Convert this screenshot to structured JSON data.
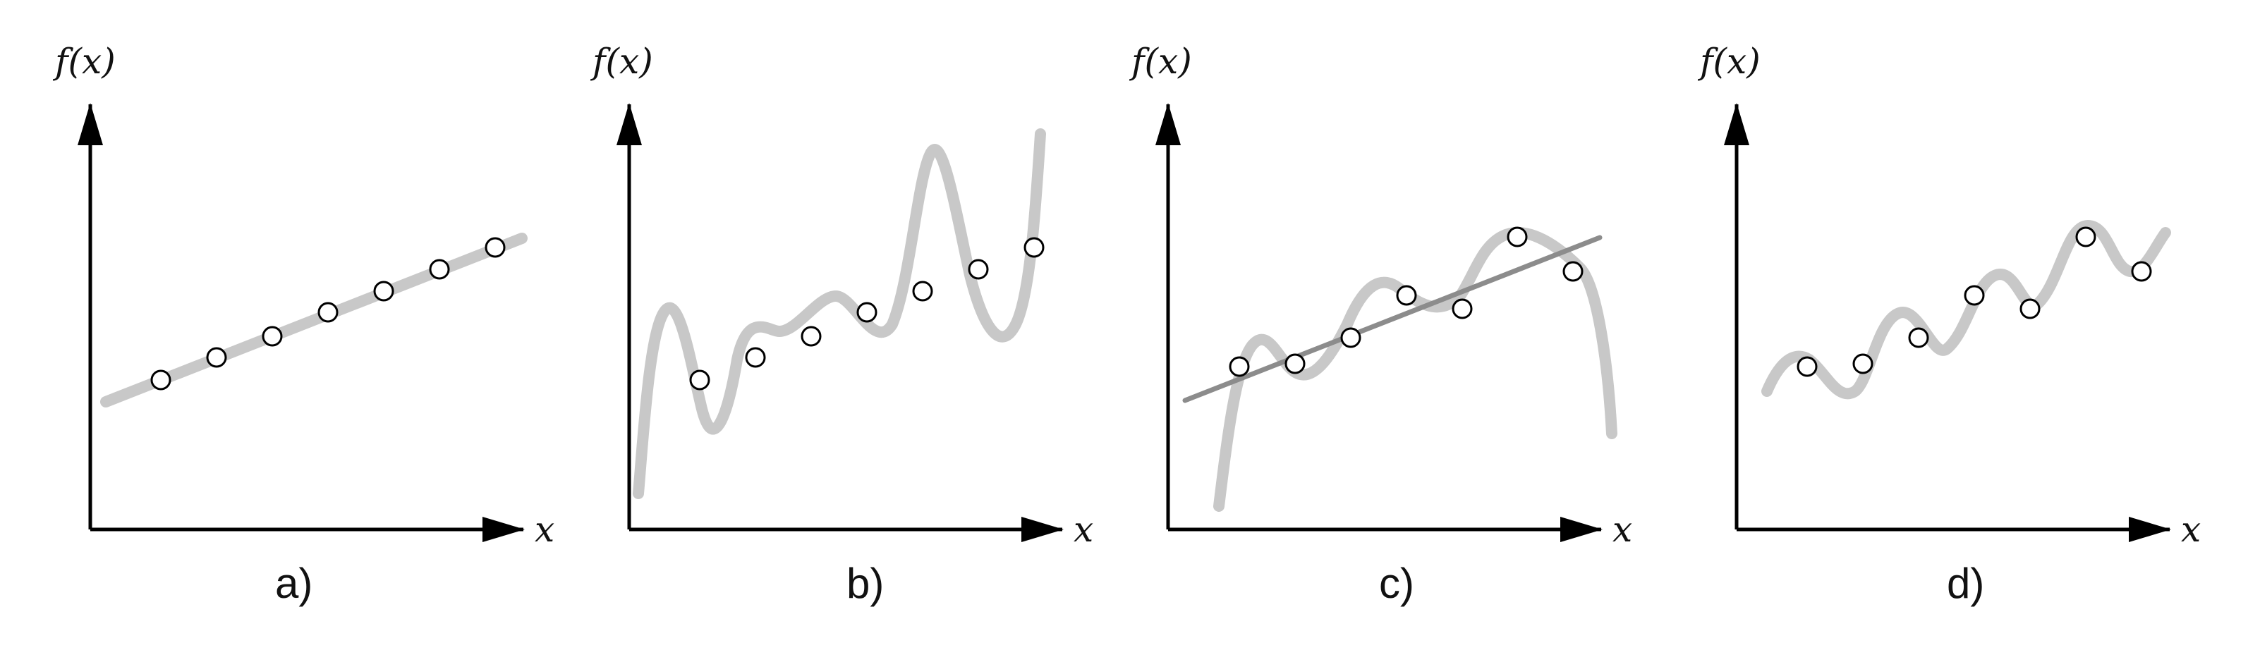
{
  "figure": {
    "panels": [
      {
        "id": "a",
        "label": "a)",
        "y_axis_label": "f(x)",
        "x_axis_label": "x",
        "curve": "straight-line",
        "points_y": [
          0.33,
          0.4,
          0.46,
          0.52,
          0.58,
          0.64,
          0.7
        ]
      },
      {
        "id": "b",
        "label": "b)",
        "y_axis_label": "f(x)",
        "x_axis_label": "x",
        "curve": "high-order-oscillating",
        "points_y": [
          0.33,
          0.4,
          0.46,
          0.52,
          0.58,
          0.64,
          0.7
        ]
      },
      {
        "id": "c",
        "label": "c)",
        "y_axis_label": "f(x)",
        "x_axis_label": "x",
        "curve": "oscillating-plus-fit-line",
        "points_y": [
          0.4,
          0.41,
          0.48,
          0.58,
          0.55,
          0.72,
          0.63
        ]
      },
      {
        "id": "d",
        "label": "d)",
        "y_axis_label": "f(x)",
        "x_axis_label": "x",
        "curve": "smooth-oscillating",
        "points_y": [
          0.4,
          0.41,
          0.48,
          0.58,
          0.55,
          0.72,
          0.63
        ]
      }
    ]
  }
}
